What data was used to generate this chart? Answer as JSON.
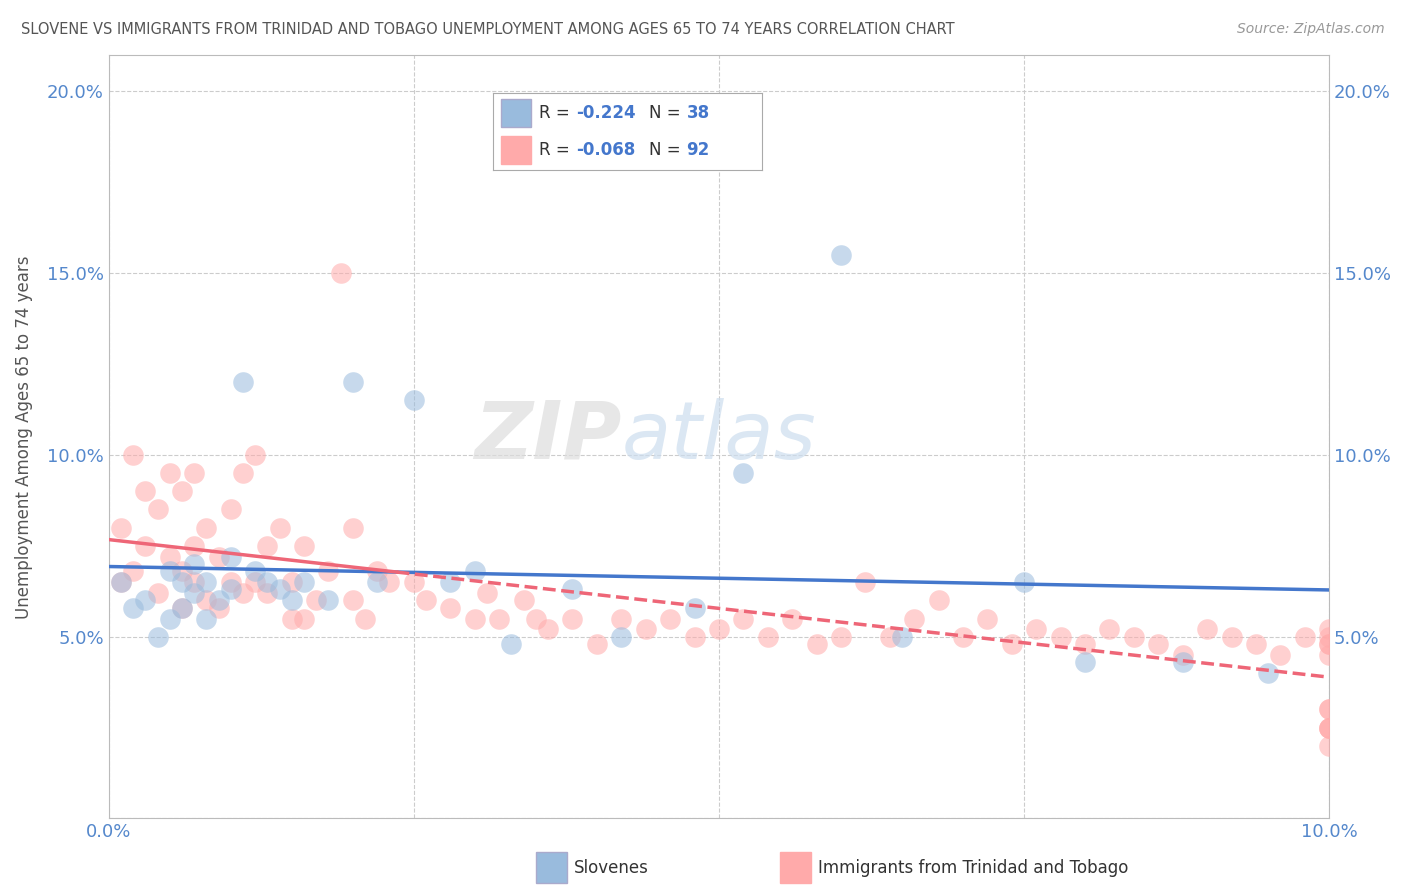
{
  "title": "SLOVENE VS IMMIGRANTS FROM TRINIDAD AND TOBAGO UNEMPLOYMENT AMONG AGES 65 TO 74 YEARS CORRELATION CHART",
  "source": "Source: ZipAtlas.com",
  "ylabel": "Unemployment Among Ages 65 to 74 years",
  "xlim": [
    0.0,
    0.1
  ],
  "ylim": [
    0.0,
    0.21
  ],
  "yticks": [
    0.0,
    0.05,
    0.1,
    0.15,
    0.2
  ],
  "watermark_zip": "ZIP",
  "watermark_atlas": "atlas",
  "legend_r_label": "R = ",
  "legend_n_label": "N = ",
  "legend_slovene_r_val": "-0.224",
  "legend_slovene_n_val": "38",
  "legend_tt_r_val": "-0.068",
  "legend_tt_n_val": "92",
  "slovene_color": "#99BBDD",
  "tt_color": "#FFAAAA",
  "slovene_line_color": "#4477CC",
  "tt_line_color": "#EE6677",
  "value_color": "#4477CC",
  "background_color": "#FFFFFF",
  "grid_color": "#CCCCCC",
  "slovene_x": [
    0.001,
    0.002,
    0.003,
    0.004,
    0.005,
    0.005,
    0.006,
    0.006,
    0.007,
    0.007,
    0.008,
    0.008,
    0.009,
    0.01,
    0.01,
    0.011,
    0.012,
    0.013,
    0.014,
    0.015,
    0.016,
    0.018,
    0.02,
    0.022,
    0.025,
    0.028,
    0.03,
    0.033,
    0.038,
    0.042,
    0.048,
    0.052,
    0.06,
    0.065,
    0.075,
    0.08,
    0.088,
    0.095
  ],
  "slovene_y": [
    0.065,
    0.058,
    0.06,
    0.05,
    0.055,
    0.068,
    0.058,
    0.065,
    0.062,
    0.07,
    0.055,
    0.065,
    0.06,
    0.063,
    0.072,
    0.12,
    0.068,
    0.065,
    0.063,
    0.06,
    0.065,
    0.06,
    0.12,
    0.065,
    0.115,
    0.065,
    0.068,
    0.048,
    0.063,
    0.05,
    0.058,
    0.095,
    0.155,
    0.05,
    0.065,
    0.043,
    0.043,
    0.04
  ],
  "tt_x": [
    0.001,
    0.001,
    0.002,
    0.002,
    0.003,
    0.003,
    0.004,
    0.004,
    0.005,
    0.005,
    0.006,
    0.006,
    0.006,
    0.007,
    0.007,
    0.007,
    0.008,
    0.008,
    0.009,
    0.009,
    0.01,
    0.01,
    0.011,
    0.011,
    0.012,
    0.012,
    0.013,
    0.013,
    0.014,
    0.015,
    0.015,
    0.016,
    0.016,
    0.017,
    0.018,
    0.019,
    0.02,
    0.02,
    0.021,
    0.022,
    0.023,
    0.025,
    0.026,
    0.028,
    0.03,
    0.031,
    0.032,
    0.034,
    0.035,
    0.036,
    0.038,
    0.04,
    0.042,
    0.044,
    0.046,
    0.048,
    0.05,
    0.052,
    0.054,
    0.056,
    0.058,
    0.06,
    0.062,
    0.064,
    0.066,
    0.068,
    0.07,
    0.072,
    0.074,
    0.076,
    0.078,
    0.08,
    0.082,
    0.084,
    0.086,
    0.088,
    0.09,
    0.092,
    0.094,
    0.096,
    0.098,
    0.1,
    0.1,
    0.1,
    0.1,
    0.1,
    0.1,
    0.1,
    0.1,
    0.1,
    0.1,
    0.1
  ],
  "tt_y": [
    0.065,
    0.08,
    0.1,
    0.068,
    0.09,
    0.075,
    0.085,
    0.062,
    0.095,
    0.072,
    0.068,
    0.09,
    0.058,
    0.075,
    0.095,
    0.065,
    0.08,
    0.06,
    0.058,
    0.072,
    0.065,
    0.085,
    0.095,
    0.062,
    0.1,
    0.065,
    0.075,
    0.062,
    0.08,
    0.065,
    0.055,
    0.075,
    0.055,
    0.06,
    0.068,
    0.15,
    0.06,
    0.08,
    0.055,
    0.068,
    0.065,
    0.065,
    0.06,
    0.058,
    0.055,
    0.062,
    0.055,
    0.06,
    0.055,
    0.052,
    0.055,
    0.048,
    0.055,
    0.052,
    0.055,
    0.05,
    0.052,
    0.055,
    0.05,
    0.055,
    0.048,
    0.05,
    0.065,
    0.05,
    0.055,
    0.06,
    0.05,
    0.055,
    0.048,
    0.052,
    0.05,
    0.048,
    0.052,
    0.05,
    0.048,
    0.045,
    0.052,
    0.05,
    0.048,
    0.045,
    0.05,
    0.048,
    0.045,
    0.052,
    0.048,
    0.05,
    0.03,
    0.025,
    0.02,
    0.025,
    0.03,
    0.025
  ]
}
